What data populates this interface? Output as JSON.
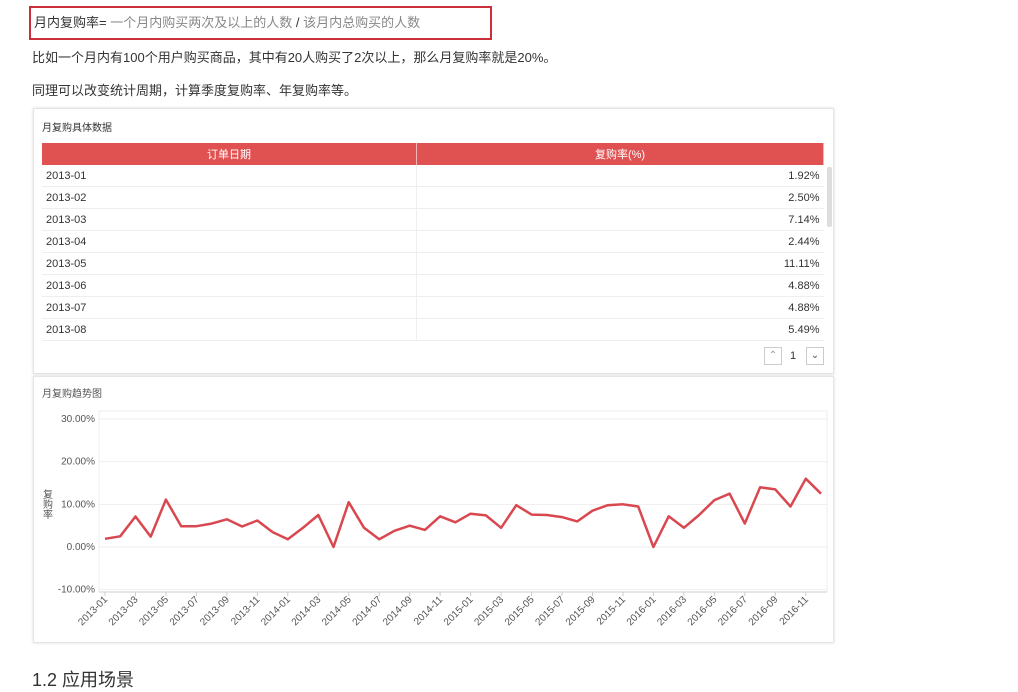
{
  "document": {
    "formula": {
      "label": "月内复购率=",
      "numerator": "一个月内购买两次及以上的人数",
      "divider": "/",
      "denominator": "该月内总购买的人数"
    },
    "paragraphs": [
      "比如一个月内有100个用户购买商品，其中有20人购买了2次以上，那么月复购率就是20%。",
      "同理可以改变统计周期，计算季度复购率、年复购率等。"
    ],
    "table": {
      "title": "月复购具体数据",
      "columns": [
        "订单日期",
        "复购率(%)"
      ],
      "rows": [
        [
          "2013-01",
          "1.92%"
        ],
        [
          "2013-02",
          "2.50%"
        ],
        [
          "2013-03",
          "7.14%"
        ],
        [
          "2013-04",
          "2.44%"
        ],
        [
          "2013-05",
          "11.11%"
        ],
        [
          "2013-06",
          "4.88%"
        ],
        [
          "2013-07",
          "4.88%"
        ],
        [
          "2013-08",
          "5.49%"
        ]
      ],
      "page": 1
    },
    "heading": "1.2 应用场景"
  },
  "chart_data": {
    "type": "line",
    "title": "月复购趋势图",
    "y_label": "复购率",
    "categories": [
      "2013-01",
      null,
      "2013-03",
      null,
      "2013-05",
      null,
      "2013-07",
      null,
      "2013-09",
      null,
      "2013-11",
      null,
      "2014-01",
      null,
      "2014-03",
      null,
      "2014-05",
      null,
      "2014-07",
      null,
      "2014-09",
      null,
      "2014-11",
      null,
      "2015-01",
      null,
      "2015-03",
      null,
      "2015-05",
      null,
      "2015-07",
      null,
      "2015-09",
      null,
      "2015-11",
      null,
      "2016-01",
      null,
      "2016-03",
      null,
      "2016-05",
      null,
      "2016-07",
      null,
      "2016-09",
      null,
      "2016-11",
      null
    ],
    "series": [
      {
        "name": "复购率",
        "color": "#d9474f",
        "values": [
          1.92,
          2.5,
          7.14,
          2.44,
          11.11,
          4.88,
          4.88,
          5.49,
          6.5,
          4.8,
          6.2,
          3.5,
          1.8,
          4.5,
          7.5,
          0.0,
          10.5,
          4.5,
          1.8,
          3.8,
          5.0,
          4.0,
          7.2,
          5.8,
          7.8,
          7.4,
          4.5,
          9.8,
          7.6,
          7.5,
          7.0,
          6.0,
          8.5,
          9.8,
          10.0,
          9.5,
          0.0,
          7.2,
          4.5,
          7.5,
          11.0,
          12.5,
          5.5,
          14.0,
          13.5,
          9.5,
          16.0,
          12.5
        ]
      }
    ],
    "ylim": [
      -10,
      30
    ],
    "yticks": [
      {
        "value": 30,
        "label": "30.00%"
      },
      {
        "value": 20,
        "label": "20.00%"
      },
      {
        "value": 10,
        "label": "10.00%"
      },
      {
        "value": 0,
        "label": "0.00%"
      },
      {
        "value": -10,
        "label": "-10.00%"
      }
    ],
    "grid": true
  }
}
